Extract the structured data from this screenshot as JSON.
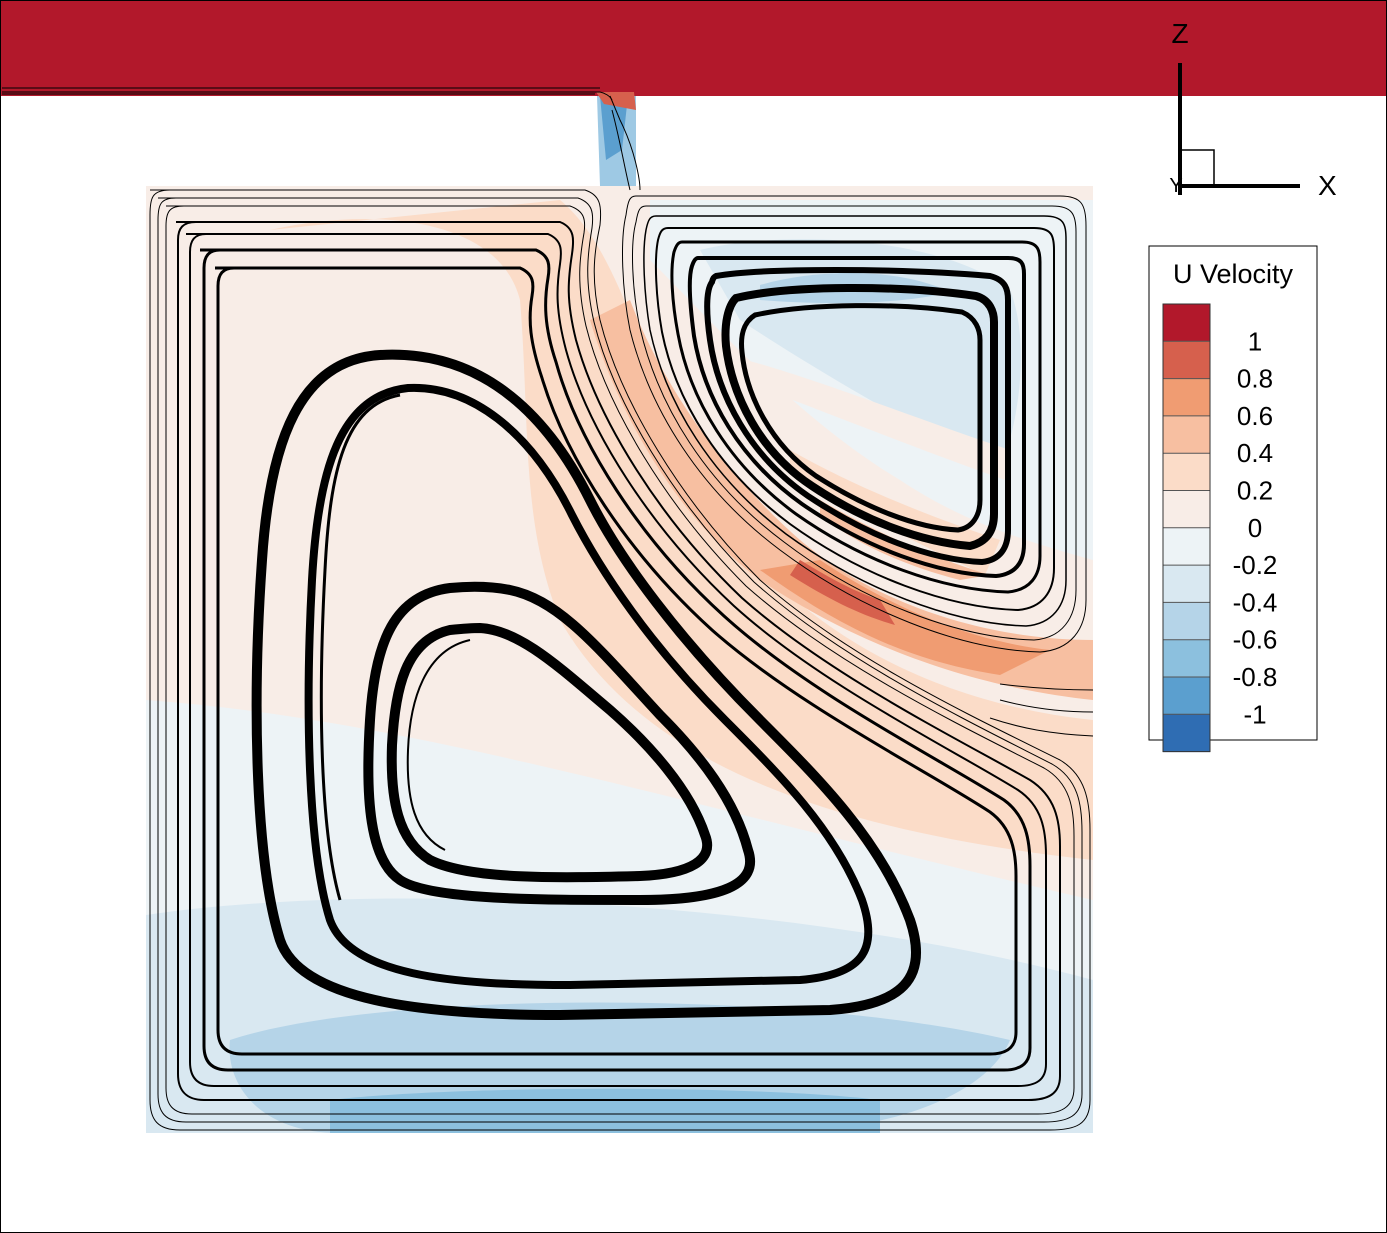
{
  "axes_triad": {
    "z_label": "Z",
    "x_label": "X",
    "y_label": "Y"
  },
  "legend": {
    "title": "U Velocity",
    "levels": [
      {
        "label": "",
        "color": "#b2182b"
      },
      {
        "label": "1",
        "color": "#d6604d"
      },
      {
        "label": "0.8",
        "color": "#f09c72"
      },
      {
        "label": "0.6",
        "color": "#f7bfa1"
      },
      {
        "label": "0.4",
        "color": "#fbdcc8"
      },
      {
        "label": "0.2",
        "color": "#f8ede7"
      },
      {
        "label": "0",
        "color": "#edf3f6"
      },
      {
        "label": "-0.2",
        "color": "#d9e8f1"
      },
      {
        "label": "-0.4",
        "color": "#b5d4e8"
      },
      {
        "label": "-0.6",
        "color": "#8cc0de"
      },
      {
        "label": "-0.8",
        "color": "#5b9fcf"
      },
      {
        "label": "-1",
        "color": "#2f6db3"
      }
    ]
  },
  "colors": {
    "lid": "#b2182b",
    "streamline": "#000000",
    "background": "#ffffff"
  }
}
